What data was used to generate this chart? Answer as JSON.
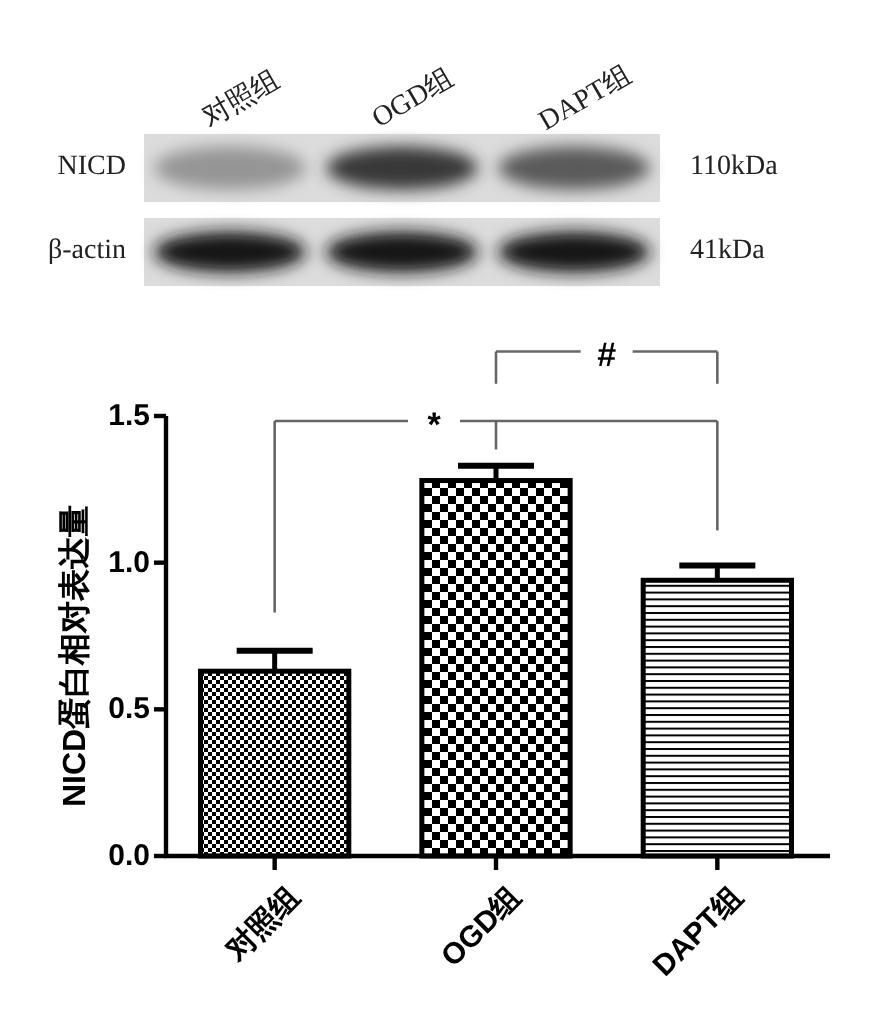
{
  "chart_data": [
    {
      "type": "other",
      "categories": [
        "对照组",
        "OGD组",
        "DAPT组"
      ],
      "y_categories": [
        "NICD",
        "β-actin"
      ],
      "y2_categories": [
        "110kDa",
        "41kDa"
      ]
    },
    {
      "type": "bar",
      "categories": [
        "对照组",
        "OGD组",
        "DAPT组"
      ],
      "values": [
        0.63,
        1.28,
        0.94
      ],
      "errors": [
        0.07,
        0.05,
        0.05
      ],
      "color": "#000000",
      "ylabel": "NICD蛋白相对表达量",
      "ylim": [
        0,
        1.5
      ],
      "yticks": [
        {
          "value": 0,
          "label": "0.0"
        },
        {
          "value": 0.5,
          "label": "0.5"
        },
        {
          "value": 1,
          "label": "1.0"
        },
        {
          "value": 1.5,
          "label": "1.5"
        }
      ],
      "annotations": [
        "*",
        "#"
      ]
    }
  ]
}
